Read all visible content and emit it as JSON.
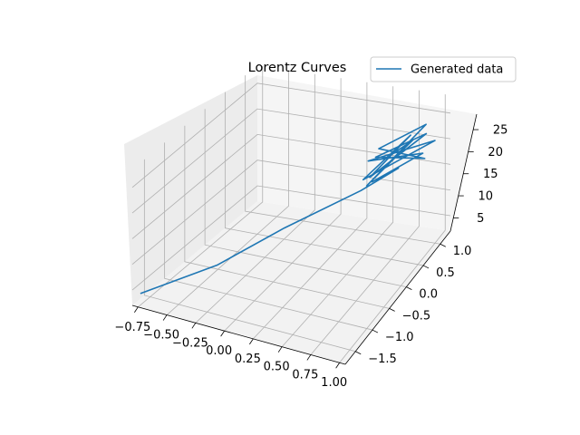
{
  "chart_data": {
    "type": "line",
    "projection": "3d",
    "title": "Lorentz Curves",
    "legend": {
      "position": "top-right",
      "entries": [
        "Generated data"
      ]
    },
    "grid": true,
    "axes": {
      "x": {
        "lim": [
          -0.8,
          1.05
        ],
        "ticks": [
          -0.75,
          -0.5,
          -0.25,
          0.0,
          0.25,
          0.5,
          0.75,
          1.0
        ],
        "tick_labels": [
          "−0.75",
          "−0.50",
          "−0.25",
          "0.00",
          "0.25",
          "0.50",
          "0.75",
          "1.00"
        ]
      },
      "y": {
        "lim": [
          -1.8,
          1.3
        ],
        "ticks": [
          -1.5,
          -1.0,
          -0.5,
          0.0,
          0.5,
          1.0
        ],
        "tick_labels": [
          "−1.5",
          "−1.0",
          "−0.5",
          "0.0",
          "0.5",
          "1.0"
        ]
      },
      "z": {
        "lim": [
          2,
          28.5
        ],
        "ticks": [
          5,
          10,
          15,
          20,
          25
        ],
        "tick_labels": [
          "5",
          "10",
          "15",
          "20",
          "25"
        ]
      }
    },
    "series": [
      {
        "name": "Generated data",
        "color": "#1f77b4",
        "x": [
          -0.8,
          -0.3,
          0.1,
          0.6,
          0.85,
          0.8,
          0.95,
          0.7,
          1.0,
          0.75,
          0.9,
          0.65,
          0.95,
          0.8,
          1.0,
          0.7,
          0.85,
          0.75,
          0.95,
          0.8
        ],
        "y": [
          -1.6,
          -1.1,
          -0.5,
          0.1,
          0.4,
          -0.2,
          0.8,
          0.0,
          1.0,
          -0.3,
          0.6,
          0.2,
          0.9,
          -0.1,
          0.7,
          0.3,
          1.2,
          -0.2,
          0.5,
          0.3
        ],
        "z": [
          3,
          8,
          13,
          18,
          21,
          23,
          21,
          25,
          22,
          24,
          26,
          20,
          24,
          27,
          21,
          25,
          23,
          22,
          26,
          24
        ]
      }
    ]
  }
}
